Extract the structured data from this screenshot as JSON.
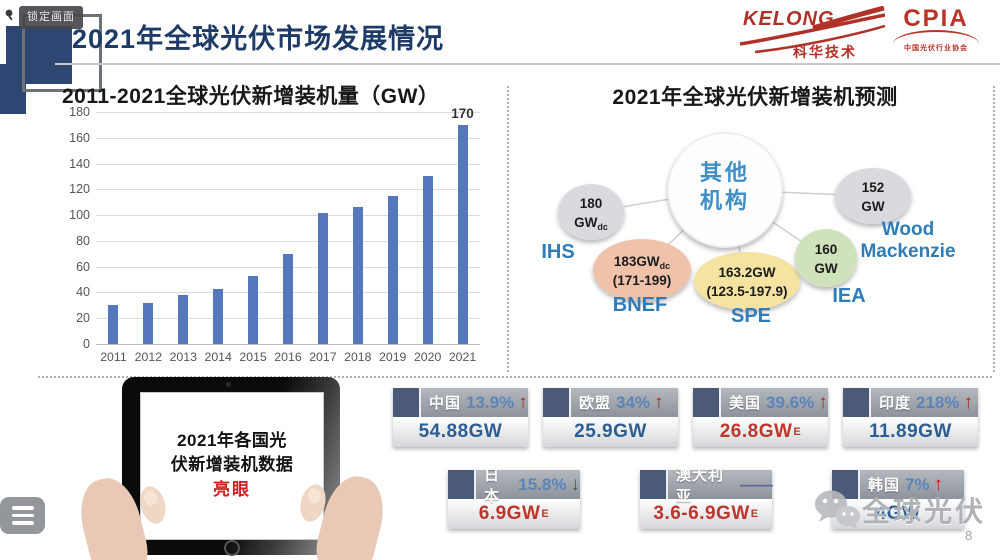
{
  "overlay": {
    "lock_label": "锁定画面",
    "watermark_text": "全球光伏",
    "page_number": "8"
  },
  "header": {
    "title": "2021年全球光伏市场发展情况",
    "kelong_name": "KELONG",
    "kelong_sub": "科华技术",
    "cpia_name": "CPIA",
    "cpia_sub": "中国光伏行业协会"
  },
  "chart_data": {
    "type": "bar",
    "title": "2011-2021全球光伏新增装机量（GW）",
    "categories": [
      "2011",
      "2012",
      "2013",
      "2014",
      "2015",
      "2016",
      "2017",
      "2018",
      "2019",
      "2020",
      "2021"
    ],
    "values": [
      30,
      32,
      38,
      43,
      53,
      70,
      102,
      106,
      115,
      130,
      170
    ],
    "ylim": [
      0,
      180
    ],
    "yticks": [
      0,
      20,
      40,
      60,
      80,
      100,
      120,
      140,
      160,
      180
    ],
    "point_labels": [
      {
        "category": "2021",
        "text": "170"
      }
    ],
    "grid": true,
    "legend": "none",
    "xlabel": "",
    "ylabel": "",
    "bar_color": "#5577bb"
  },
  "forecast": {
    "title": "2021年全球光伏新增装机预测",
    "center_label_lines": [
      "其他",
      "机构"
    ],
    "bubbles": [
      {
        "org": "IHS",
        "value": "180",
        "value_sub": "",
        "unit": "GW",
        "unit_sub": "dc",
        "range": "",
        "color": "#d8dadd"
      },
      {
        "org": "BNEF",
        "value": "183GW",
        "value_sub": "dc",
        "unit": "",
        "unit_sub": "",
        "range": "(171-199)",
        "color": "#f0c2a9"
      },
      {
        "org": "SPE",
        "value": "163.2GW",
        "value_sub": "",
        "unit": "",
        "unit_sub": "",
        "range": "(123.5-197.9)",
        "color": "#f4e3a1"
      },
      {
        "org": "IEA",
        "value": "160",
        "value_sub": "",
        "unit": "GW",
        "unit_sub": "",
        "range": "",
        "color": "#cfe2bb"
      },
      {
        "org": "Wood Mackenzie",
        "value": "152",
        "value_sub": "",
        "unit": "GW",
        "unit_sub": "",
        "range": "",
        "color": "#d8dadd"
      }
    ]
  },
  "tablet": {
    "line1": "2021年各国光",
    "line2": "伏新增装机数据",
    "highlight": "亮眼"
  },
  "stats": {
    "rows": [
      [
        {
          "country": "中国",
          "pct": "13.9%",
          "trend": "up",
          "value": "54.88GW",
          "sup": "",
          "value_style": "blue"
        },
        {
          "country": "欧盟",
          "pct": "34%",
          "trend": "up",
          "value": "25.9GW",
          "sup": "",
          "value_style": "blue"
        },
        {
          "country": "美国",
          "pct": "39.6%",
          "trend": "up",
          "value": "26.8GW",
          "sup": "E",
          "value_style": "red"
        },
        {
          "country": "印度",
          "pct": "218%",
          "trend": "up",
          "value": "11.89GW",
          "sup": "",
          "value_style": "blue"
        }
      ],
      [
        {
          "country": "日本",
          "pct": "15.8%",
          "trend": "down",
          "value": "6.9GW",
          "sup": "E",
          "value_style": "red"
        },
        {
          "country": "澳大利亚",
          "pct": "",
          "trend": "flat",
          "value": "3.6-6.9GW",
          "sup": "E",
          "value_style": "red"
        },
        {
          "country": "韩国",
          "pct": "7%",
          "trend": "up",
          "value": "4GW",
          "sup": "",
          "value_style": "blue"
        }
      ]
    ]
  },
  "colors": {
    "bar": "#5577bb",
    "title_navy": "#1e3a66",
    "org_label_blue": "#2f7cb8",
    "center_label_blue": "#3e8fc9",
    "logo_red": "#b03128"
  }
}
